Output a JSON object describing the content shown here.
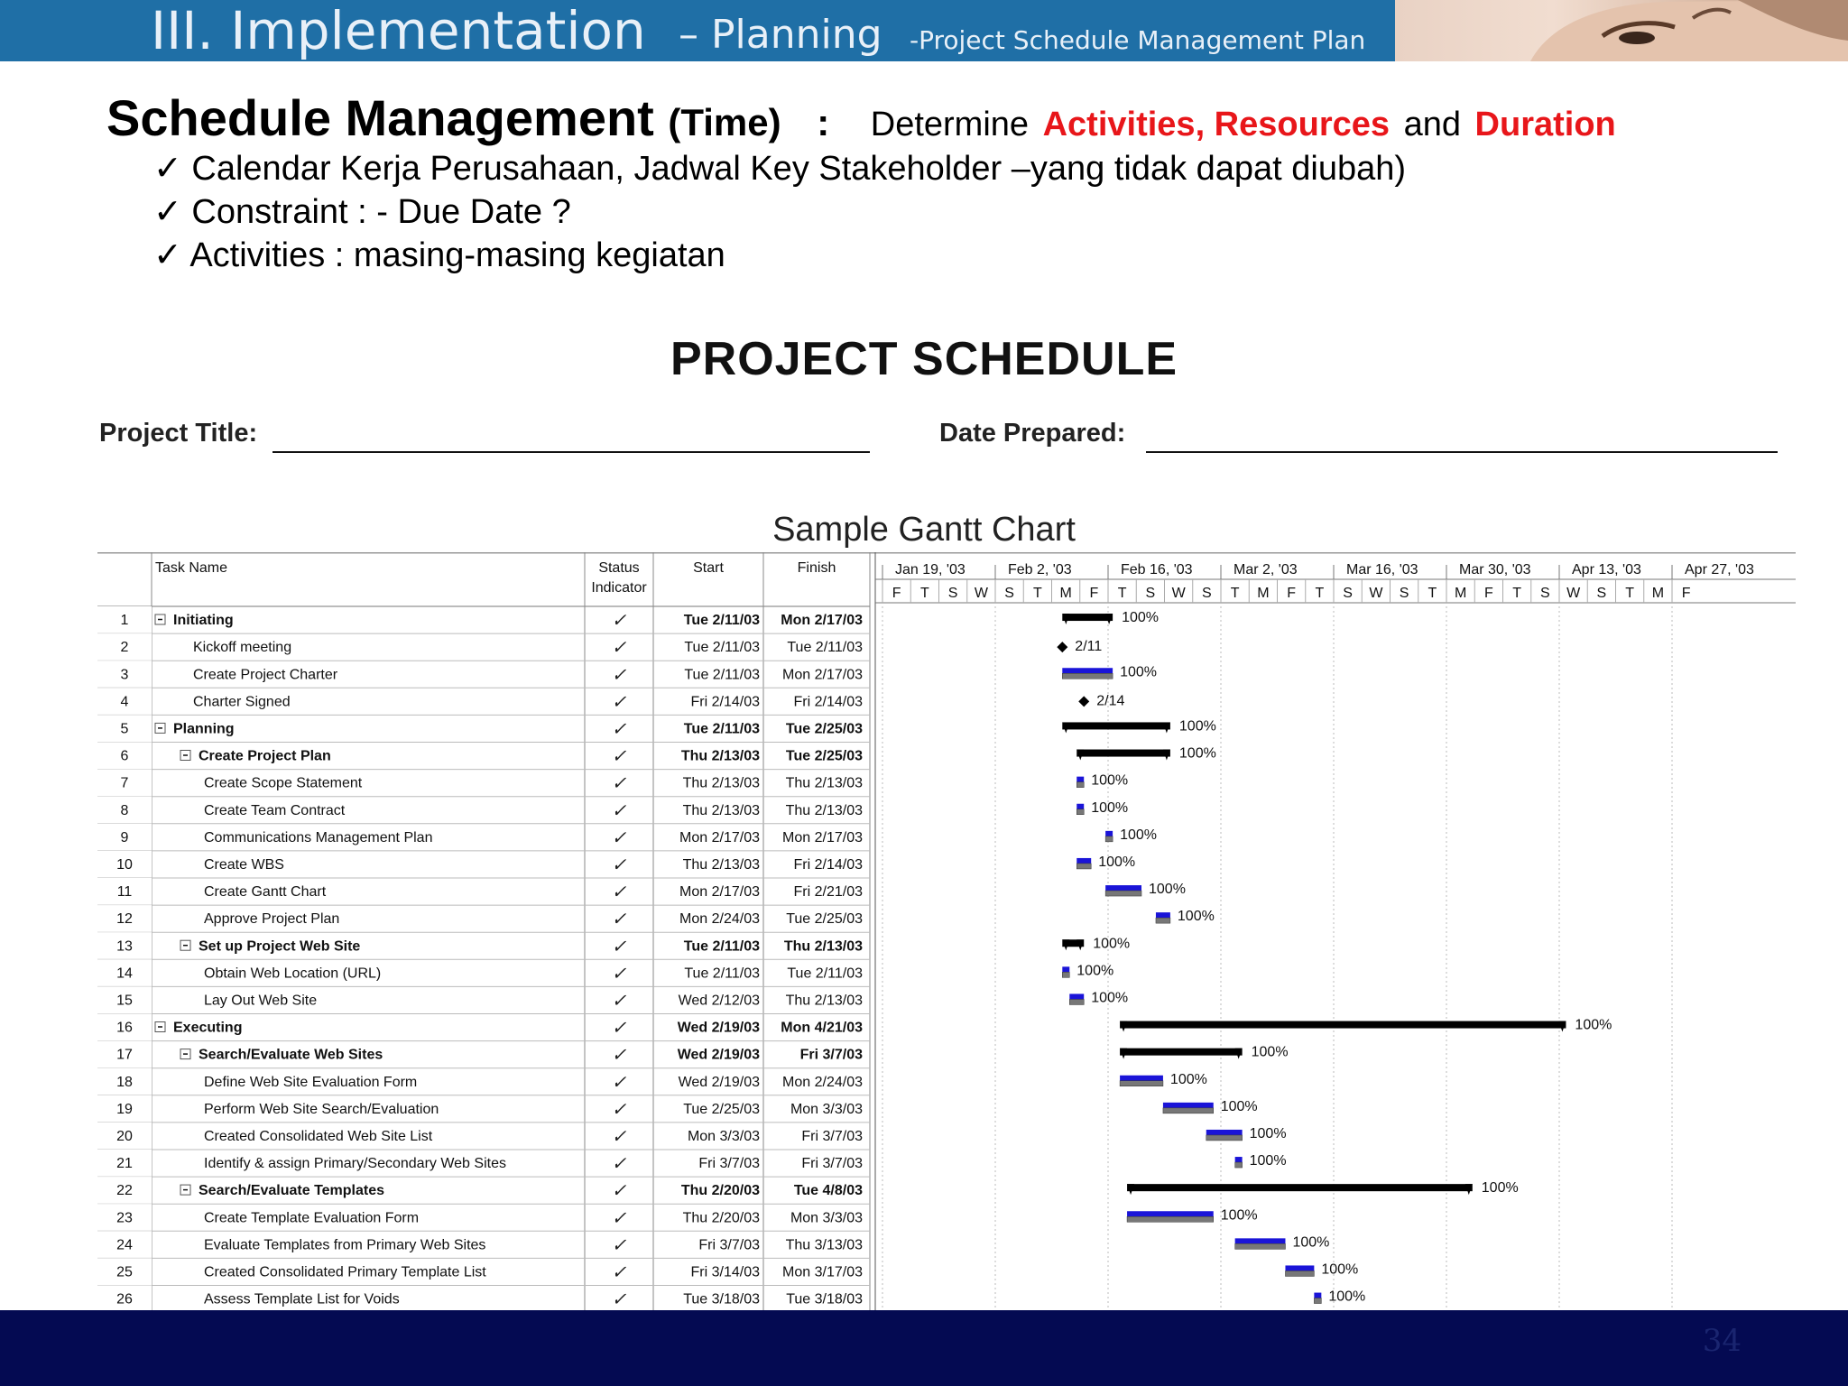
{
  "header": {
    "title_main": "III. Implementation",
    "title_dash": "– Planning",
    "title_sub": "-Project Schedule Management Plan"
  },
  "heading": {
    "bold": "Schedule Management",
    "paren": "(Time)",
    "colon": ":",
    "determine": "Determine",
    "red1": "Activities, Resources",
    "and": "and",
    "red2": "Duration"
  },
  "bullets": [
    "Calendar  Kerja Perusahaan, Jadwal Key Stakeholder –yang tidak dapat diubah)",
    "Constraint : - Due Date ?",
    "Activities : masing-masing kegiatan"
  ],
  "bullet_mark": "✓",
  "form": {
    "title": "PROJECT SCHEDULE",
    "project_title_label": "Project Title:",
    "date_prepared_label": "Date Prepared:"
  },
  "gantt": {
    "caption": "Sample Gantt Chart",
    "columns": {
      "task": "Task Name",
      "status_1": "Status",
      "status_2": "Indicator",
      "start": "Start",
      "finish": "Finish"
    },
    "check": "✓",
    "timeline_weeks": [
      "Jan 19, '03",
      "Feb 2, '03",
      "Feb 16, '03",
      "Mar 2, '03",
      "Mar 16, '03",
      "Mar 30, '03",
      "Apr 13, '03",
      "Apr 27, '03"
    ],
    "timeline_days": [
      "F",
      "T",
      "S",
      "W",
      "S",
      "T",
      "M",
      "F",
      "T",
      "S",
      "W",
      "S",
      "T",
      "M",
      "F",
      "T",
      "S",
      "W",
      "S",
      "T",
      "M",
      "F",
      "T",
      "S",
      "W",
      "S",
      "T",
      "M",
      "F"
    ],
    "rows": [
      {
        "id": "1",
        "name": "Initiating",
        "level": 0,
        "summary": true,
        "start": "Tue 2/11/03",
        "finish": "Mon 2/17/03",
        "label": "100%"
      },
      {
        "id": "2",
        "name": "Kickoff meeting",
        "level": 1,
        "summary": false,
        "start": "Tue 2/11/03",
        "finish": "Tue 2/11/03",
        "label": "2/11"
      },
      {
        "id": "3",
        "name": "Create Project Charter",
        "level": 1,
        "summary": false,
        "start": "Tue 2/11/03",
        "finish": "Mon 2/17/03",
        "label": "100%"
      },
      {
        "id": "4",
        "name": "Charter Signed",
        "level": 1,
        "summary": false,
        "start": "Fri 2/14/03",
        "finish": "Fri 2/14/03",
        "label": "2/14"
      },
      {
        "id": "5",
        "name": "Planning",
        "level": 0,
        "summary": true,
        "start": "Tue 2/11/03",
        "finish": "Tue 2/25/03",
        "label": "100%"
      },
      {
        "id": "6",
        "name": "Create Project Plan",
        "level": 1,
        "summary": true,
        "start": "Thu 2/13/03",
        "finish": "Tue 2/25/03",
        "label": "100%"
      },
      {
        "id": "7",
        "name": "Create Scope Statement",
        "level": 2,
        "summary": false,
        "start": "Thu 2/13/03",
        "finish": "Thu 2/13/03",
        "label": "100%"
      },
      {
        "id": "8",
        "name": "Create Team Contract",
        "level": 2,
        "summary": false,
        "start": "Thu 2/13/03",
        "finish": "Thu 2/13/03",
        "label": "100%"
      },
      {
        "id": "9",
        "name": "Communications Management Plan",
        "level": 2,
        "summary": false,
        "start": "Mon 2/17/03",
        "finish": "Mon 2/17/03",
        "label": "100%"
      },
      {
        "id": "10",
        "name": "Create WBS",
        "level": 2,
        "summary": false,
        "start": "Thu 2/13/03",
        "finish": "Fri 2/14/03",
        "label": "100%"
      },
      {
        "id": "11",
        "name": "Create Gantt Chart",
        "level": 2,
        "summary": false,
        "start": "Mon 2/17/03",
        "finish": "Fri 2/21/03",
        "label": "100%"
      },
      {
        "id": "12",
        "name": "Approve Project Plan",
        "level": 2,
        "summary": false,
        "start": "Mon 2/24/03",
        "finish": "Tue 2/25/03",
        "label": "100%"
      },
      {
        "id": "13",
        "name": "Set up Project Web Site",
        "level": 1,
        "summary": true,
        "start": "Tue 2/11/03",
        "finish": "Thu 2/13/03",
        "label": "100%"
      },
      {
        "id": "14",
        "name": "Obtain Web Location (URL)",
        "level": 2,
        "summary": false,
        "start": "Tue 2/11/03",
        "finish": "Tue 2/11/03",
        "label": "100%"
      },
      {
        "id": "15",
        "name": "Lay Out Web Site",
        "level": 2,
        "summary": false,
        "start": "Wed 2/12/03",
        "finish": "Thu 2/13/03",
        "label": "100%"
      },
      {
        "id": "16",
        "name": "Executing",
        "level": 0,
        "summary": true,
        "start": "Wed 2/19/03",
        "finish": "Mon 4/21/03",
        "label": "100%"
      },
      {
        "id": "17",
        "name": "Search/Evaluate Web Sites",
        "level": 1,
        "summary": true,
        "start": "Wed 2/19/03",
        "finish": "Fri 3/7/03",
        "label": "100%"
      },
      {
        "id": "18",
        "name": "Define Web Site Evaluation Form",
        "level": 2,
        "summary": false,
        "start": "Wed 2/19/03",
        "finish": "Mon 2/24/03",
        "label": "100%"
      },
      {
        "id": "19",
        "name": "Perform Web Site Search/Evaluation",
        "level": 2,
        "summary": false,
        "start": "Tue 2/25/03",
        "finish": "Mon 3/3/03",
        "label": "100%"
      },
      {
        "id": "20",
        "name": "Created Consolidated Web Site List",
        "level": 2,
        "summary": false,
        "start": "Mon 3/3/03",
        "finish": "Fri 3/7/03",
        "label": "100%"
      },
      {
        "id": "21",
        "name": "Identify & assign Primary/Secondary Web Sites",
        "level": 2,
        "summary": false,
        "start": "Fri 3/7/03",
        "finish": "Fri 3/7/03",
        "label": "100%"
      },
      {
        "id": "22",
        "name": "Search/Evaluate Templates",
        "level": 1,
        "summary": true,
        "start": "Thu 2/20/03",
        "finish": "Tue 4/8/03",
        "label": "100%"
      },
      {
        "id": "23",
        "name": "Create Template Evaluation Form",
        "level": 2,
        "summary": false,
        "start": "Thu 2/20/03",
        "finish": "Mon 3/3/03",
        "label": "100%"
      },
      {
        "id": "24",
        "name": "Evaluate Templates from Primary Web Sites",
        "level": 2,
        "summary": false,
        "start": "Fri 3/7/03",
        "finish": "Thu 3/13/03",
        "label": "100%"
      },
      {
        "id": "25",
        "name": "Created Consolidated Primary Template List",
        "level": 2,
        "summary": false,
        "start": "Fri 3/14/03",
        "finish": "Mon 3/17/03",
        "label": "100%"
      },
      {
        "id": "26",
        "name": "Assess Template List for Voids",
        "level": 2,
        "summary": false,
        "start": "Tue 3/18/03",
        "finish": "Tue 3/18/03",
        "label": "100%"
      }
    ],
    "colors": {
      "task_bar": "#1a14d8",
      "summary_bar": "#000000",
      "link": "#1a14d8",
      "check": "#1a1a1a"
    }
  },
  "footer": {
    "page_number": "34"
  }
}
